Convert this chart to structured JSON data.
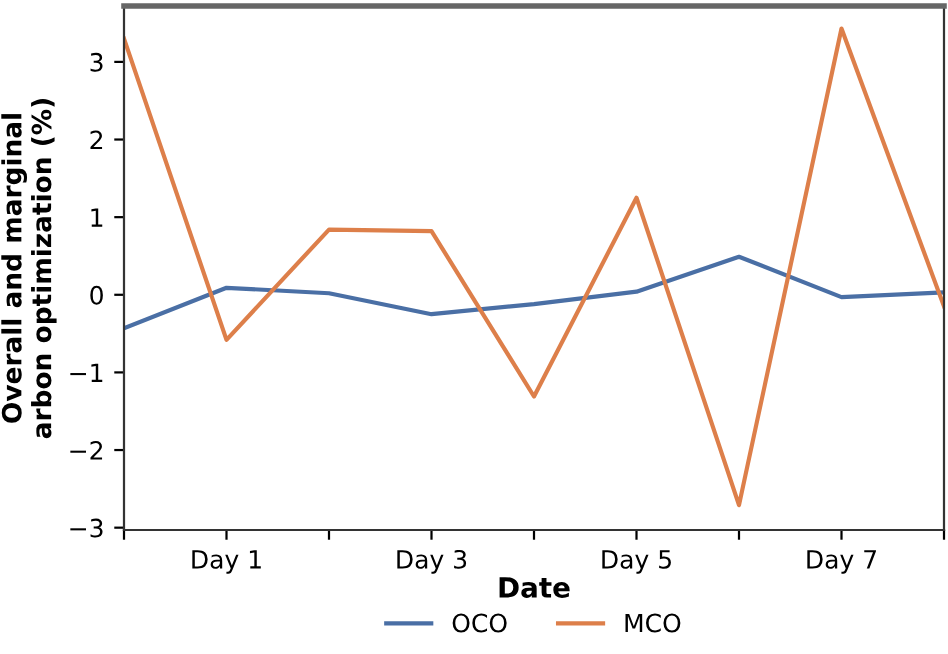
{
  "chart_data": {
    "type": "line",
    "xlabel": "Date",
    "ylabel": "Overall and marginal\narbon optimization (%)",
    "categories": [
      null,
      "Day 1",
      null,
      "Day 3",
      null,
      "Day 5",
      null,
      "Day 7",
      null
    ],
    "ylim": [
      -3.03,
      3.72
    ],
    "yticks": [
      -3,
      -2,
      -1,
      0,
      1,
      2,
      3
    ],
    "grid": false,
    "legend": "bottom",
    "marker": "none",
    "line_style": "solid",
    "series": [
      {
        "name": "OCO",
        "color": "#4a6fa5",
        "values": [
          -0.43,
          0.09,
          0.02,
          -0.25,
          -0.12,
          0.04,
          0.49,
          -0.03,
          0.03
        ]
      },
      {
        "name": "MCO",
        "color": "#dd7f4a",
        "values": [
          3.3,
          -0.58,
          0.84,
          0.82,
          -1.31,
          1.25,
          -2.71,
          3.43,
          -0.15
        ]
      }
    ]
  }
}
